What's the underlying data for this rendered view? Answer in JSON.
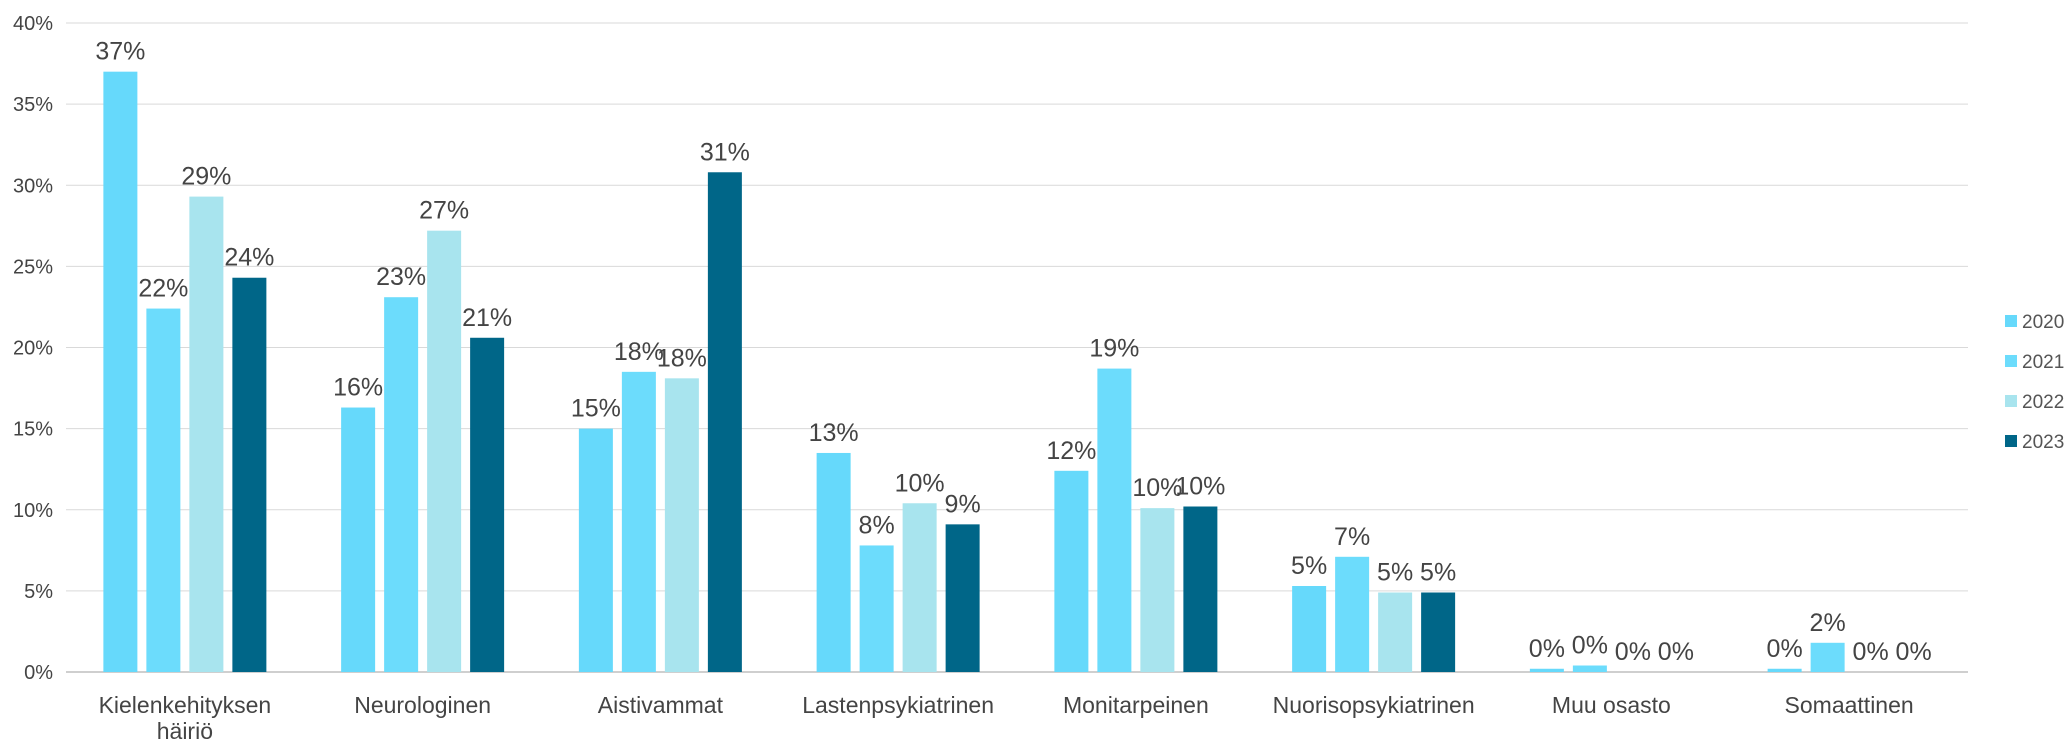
{
  "chart_data": {
    "type": "bar",
    "title": "",
    "xlabel": "",
    "ylabel": "",
    "ylim": [
      0,
      40
    ],
    "yticks": [
      "0%",
      "5%",
      "10%",
      "15%",
      "20%",
      "25%",
      "30%",
      "35%",
      "40%"
    ],
    "grid": true,
    "legend_position": "right",
    "categories": [
      [
        "Kielenkehityksen",
        "häiriö"
      ],
      [
        "Neurologinen"
      ],
      [
        "Aistivammat"
      ],
      [
        "Lastenpsykiatrinen"
      ],
      [
        "Monitarpeinen"
      ],
      [
        "Nuorisopsykiatrinen"
      ],
      [
        "Muu osasto"
      ],
      [
        "Somaattinen"
      ]
    ],
    "series": [
      {
        "name": "2020",
        "color": "#66d9fb",
        "values": [
          37,
          16.3,
          15,
          13.5,
          12.4,
          5.3,
          0.2,
          0.2
        ],
        "labels": [
          "37%",
          "16%",
          "15%",
          "13%",
          "12%",
          "5%",
          "0%",
          "0%"
        ]
      },
      {
        "name": "2021",
        "color": "#6cdcfc",
        "values": [
          22.4,
          23.1,
          18.5,
          7.8,
          18.7,
          7.1,
          0.4,
          1.8
        ],
        "labels": [
          "22%",
          "23%",
          "18%",
          "8%",
          "19%",
          "7%",
          "0%",
          "2%"
        ]
      },
      {
        "name": "2022",
        "color": "#a8e4ee",
        "values": [
          29.3,
          27.2,
          18.1,
          10.4,
          10.1,
          4.9,
          0,
          0
        ],
        "labels": [
          "29%",
          "27%",
          "18%",
          "10%",
          "10%",
          "5%",
          "0%",
          "0%"
        ]
      },
      {
        "name": "2023",
        "color": "#006688",
        "values": [
          24.3,
          20.6,
          30.8,
          9.1,
          10.2,
          4.9,
          0,
          0
        ],
        "labels": [
          "24%",
          "21%",
          "31%",
          "9%",
          "10%",
          "5%",
          "0%",
          "0%"
        ]
      }
    ]
  }
}
